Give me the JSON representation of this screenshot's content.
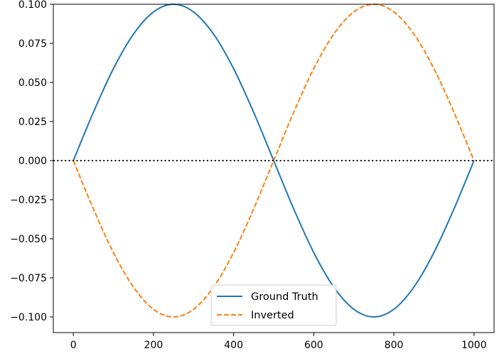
{
  "chart_data": {
    "type": "line",
    "title": "",
    "xlabel": "",
    "ylabel": "",
    "xlim": [
      -50,
      1050
    ],
    "ylim": [
      -0.11,
      0.1
    ],
    "x_ticks": [
      0,
      200,
      400,
      600,
      800,
      1000
    ],
    "x_tick_labels": [
      "0",
      "200",
      "400",
      "600",
      "800",
      "1000"
    ],
    "y_ticks": [
      0.1,
      0.075,
      0.05,
      0.025,
      0.0,
      -0.025,
      -0.05,
      -0.075,
      -0.1
    ],
    "y_tick_labels": [
      "0.100",
      "0.075",
      "0.050",
      "0.025",
      "0.000",
      "−0.025",
      "−0.050",
      "−0.075",
      "−0.100"
    ],
    "grid": false,
    "legend": {
      "placement": "lower-center"
    },
    "reference_line": {
      "y": 0,
      "style": "dotted",
      "color": "#000000"
    },
    "series": [
      {
        "name": "Ground Truth",
        "color": "#1f77b4",
        "style": "solid",
        "x": [
          0,
          50,
          100,
          150,
          200,
          250,
          300,
          350,
          400,
          450,
          500,
          550,
          600,
          650,
          700,
          750,
          800,
          850,
          900,
          950,
          1000
        ],
        "y": [
          0,
          0.0309,
          0.0588,
          0.0809,
          0.0951,
          0.1,
          0.0951,
          0.0809,
          0.0588,
          0.0309,
          0,
          -0.0309,
          -0.0588,
          -0.0809,
          -0.0951,
          -0.1,
          -0.0951,
          -0.0809,
          -0.0588,
          -0.0309,
          0
        ]
      },
      {
        "name": "Inverted",
        "color": "#ff7f0e",
        "style": "dashed",
        "x": [
          0,
          50,
          100,
          150,
          200,
          250,
          300,
          350,
          400,
          450,
          500,
          550,
          600,
          650,
          700,
          750,
          800,
          850,
          900,
          950,
          1000
        ],
        "y": [
          0,
          -0.0309,
          -0.0588,
          -0.0809,
          -0.0951,
          -0.1,
          -0.0951,
          -0.0809,
          -0.0588,
          -0.0309,
          0,
          0.0309,
          0.0588,
          0.0809,
          0.0951,
          0.1,
          0.0951,
          0.0809,
          0.0588,
          0.0309,
          0
        ]
      }
    ]
  }
}
